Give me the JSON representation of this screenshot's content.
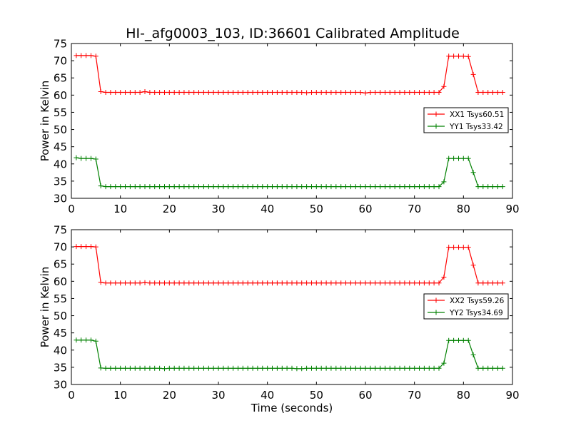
{
  "figure": {
    "title": "HI-_afg0003_103, ID:36601 Calibrated Amplitude"
  },
  "chart_data": [
    {
      "type": "line",
      "xlabel": "",
      "ylabel": "Power in Kelvin",
      "xlim": [
        0,
        90
      ],
      "ylim": [
        30,
        75
      ],
      "xticks": [
        "0",
        "10",
        "20",
        "30",
        "40",
        "50",
        "60",
        "70",
        "80",
        "90"
      ],
      "yticks": [
        "30",
        "35",
        "40",
        "45",
        "50",
        "55",
        "60",
        "65",
        "70",
        "75"
      ],
      "grid": false,
      "legend_position": "center-right",
      "series": [
        {
          "name": "XX1 Tsys60.51",
          "color": "#ff0000",
          "marker": "plus",
          "x": [
            1,
            2,
            3,
            4,
            5,
            6,
            7,
            8,
            9,
            10,
            11,
            12,
            13,
            14,
            15,
            16,
            17,
            18,
            19,
            20,
            21,
            22,
            23,
            24,
            25,
            26,
            27,
            28,
            29,
            30,
            31,
            32,
            33,
            34,
            35,
            36,
            37,
            38,
            39,
            40,
            41,
            42,
            43,
            44,
            45,
            46,
            47,
            48,
            49,
            50,
            51,
            52,
            53,
            54,
            55,
            56,
            57,
            58,
            59,
            60,
            61,
            62,
            63,
            64,
            65,
            66,
            67,
            68,
            69,
            70,
            71,
            72,
            73,
            74,
            75,
            76,
            77,
            78,
            79,
            80,
            81,
            82,
            83,
            84,
            85,
            86,
            87,
            88
          ],
          "y": [
            71.5,
            71.5,
            71.5,
            71.5,
            71.3,
            61.0,
            60.8,
            60.8,
            60.8,
            60.8,
            60.8,
            60.8,
            60.8,
            60.8,
            61.0,
            60.8,
            60.8,
            60.8,
            60.8,
            60.8,
            60.8,
            60.8,
            60.8,
            60.8,
            60.8,
            60.8,
            60.8,
            60.8,
            60.8,
            60.8,
            60.8,
            60.8,
            60.8,
            60.8,
            60.8,
            60.8,
            60.8,
            60.8,
            60.8,
            60.8,
            60.8,
            60.8,
            60.8,
            60.8,
            60.8,
            60.8,
            60.8,
            60.7,
            60.8,
            60.8,
            60.8,
            60.8,
            60.8,
            60.8,
            60.8,
            60.8,
            60.8,
            60.8,
            60.8,
            60.6,
            60.8,
            60.8,
            60.8,
            60.8,
            60.8,
            60.8,
            60.8,
            60.8,
            60.8,
            60.8,
            60.8,
            60.8,
            60.8,
            60.8,
            60.8,
            62.5,
            71.3,
            71.3,
            71.3,
            71.3,
            71.2,
            66.0,
            60.8,
            60.8,
            60.8,
            60.8,
            60.8,
            60.8
          ]
        },
        {
          "name": "YY1 Tsys33.42",
          "color": "#008000",
          "marker": "plus",
          "x": [
            1,
            2,
            3,
            4,
            5,
            6,
            7,
            8,
            9,
            10,
            11,
            12,
            13,
            14,
            15,
            16,
            17,
            18,
            19,
            20,
            21,
            22,
            23,
            24,
            25,
            26,
            27,
            28,
            29,
            30,
            31,
            32,
            33,
            34,
            35,
            36,
            37,
            38,
            39,
            40,
            41,
            42,
            43,
            44,
            45,
            46,
            47,
            48,
            49,
            50,
            51,
            52,
            53,
            54,
            55,
            56,
            57,
            58,
            59,
            60,
            61,
            62,
            63,
            64,
            65,
            66,
            67,
            68,
            69,
            70,
            71,
            72,
            73,
            74,
            75,
            76,
            77,
            78,
            79,
            80,
            81,
            82,
            83,
            84,
            85,
            86,
            87,
            88
          ],
          "y": [
            41.8,
            41.6,
            41.6,
            41.6,
            41.4,
            33.6,
            33.4,
            33.4,
            33.4,
            33.4,
            33.4,
            33.4,
            33.4,
            33.4,
            33.4,
            33.4,
            33.4,
            33.4,
            33.4,
            33.4,
            33.4,
            33.4,
            33.4,
            33.4,
            33.4,
            33.4,
            33.4,
            33.4,
            33.4,
            33.4,
            33.4,
            33.4,
            33.4,
            33.4,
            33.4,
            33.4,
            33.4,
            33.4,
            33.4,
            33.4,
            33.4,
            33.4,
            33.4,
            33.4,
            33.4,
            33.4,
            33.4,
            33.4,
            33.4,
            33.4,
            33.4,
            33.4,
            33.4,
            33.4,
            33.4,
            33.4,
            33.4,
            33.4,
            33.4,
            33.4,
            33.4,
            33.4,
            33.4,
            33.4,
            33.4,
            33.4,
            33.4,
            33.4,
            33.4,
            33.4,
            33.4,
            33.4,
            33.4,
            33.4,
            33.4,
            34.8,
            41.6,
            41.6,
            41.6,
            41.6,
            41.6,
            37.5,
            33.4,
            33.4,
            33.4,
            33.4,
            33.4,
            33.4
          ]
        }
      ]
    },
    {
      "type": "line",
      "xlabel": "Time (seconds)",
      "ylabel": "Power in Kelvin",
      "xlim": [
        0,
        90
      ],
      "ylim": [
        30,
        75
      ],
      "xticks": [
        "0",
        "10",
        "20",
        "30",
        "40",
        "50",
        "60",
        "70",
        "80",
        "90"
      ],
      "yticks": [
        "30",
        "35",
        "40",
        "45",
        "50",
        "55",
        "60",
        "65",
        "70",
        "75"
      ],
      "grid": false,
      "legend_position": "center-right",
      "series": [
        {
          "name": "XX2 Tsys59.26",
          "color": "#ff0000",
          "marker": "plus",
          "x": [
            1,
            2,
            3,
            4,
            5,
            6,
            7,
            8,
            9,
            10,
            11,
            12,
            13,
            14,
            15,
            16,
            17,
            18,
            19,
            20,
            21,
            22,
            23,
            24,
            25,
            26,
            27,
            28,
            29,
            30,
            31,
            32,
            33,
            34,
            35,
            36,
            37,
            38,
            39,
            40,
            41,
            42,
            43,
            44,
            45,
            46,
            47,
            48,
            49,
            50,
            51,
            52,
            53,
            54,
            55,
            56,
            57,
            58,
            59,
            60,
            61,
            62,
            63,
            64,
            65,
            66,
            67,
            68,
            69,
            70,
            71,
            72,
            73,
            74,
            75,
            76,
            77,
            78,
            79,
            80,
            81,
            82,
            83,
            84,
            85,
            86,
            87,
            88
          ],
          "y": [
            70.1,
            70.1,
            70.1,
            70.1,
            70.0,
            59.7,
            59.5,
            59.5,
            59.5,
            59.5,
            59.5,
            59.5,
            59.5,
            59.5,
            59.6,
            59.5,
            59.5,
            59.5,
            59.5,
            59.5,
            59.5,
            59.5,
            59.5,
            59.5,
            59.5,
            59.5,
            59.5,
            59.5,
            59.5,
            59.5,
            59.5,
            59.5,
            59.5,
            59.5,
            59.5,
            59.5,
            59.5,
            59.5,
            59.5,
            59.5,
            59.5,
            59.5,
            59.5,
            59.5,
            59.5,
            59.5,
            59.5,
            59.5,
            59.5,
            59.5,
            59.5,
            59.5,
            59.5,
            59.5,
            59.5,
            59.5,
            59.5,
            59.5,
            59.5,
            59.5,
            59.5,
            59.5,
            59.5,
            59.5,
            59.5,
            59.5,
            59.5,
            59.5,
            59.5,
            59.5,
            59.5,
            59.5,
            59.5,
            59.5,
            59.5,
            61.2,
            69.9,
            69.9,
            69.9,
            69.9,
            69.9,
            64.7,
            59.5,
            59.5,
            59.5,
            59.5,
            59.5,
            59.5
          ]
        },
        {
          "name": "YY2 Tsys34.69",
          "color": "#008000",
          "marker": "plus",
          "x": [
            1,
            2,
            3,
            4,
            5,
            6,
            7,
            8,
            9,
            10,
            11,
            12,
            13,
            14,
            15,
            16,
            17,
            18,
            19,
            20,
            21,
            22,
            23,
            24,
            25,
            26,
            27,
            28,
            29,
            30,
            31,
            32,
            33,
            34,
            35,
            36,
            37,
            38,
            39,
            40,
            41,
            42,
            43,
            44,
            45,
            46,
            47,
            48,
            49,
            50,
            51,
            52,
            53,
            54,
            55,
            56,
            57,
            58,
            59,
            60,
            61,
            62,
            63,
            64,
            65,
            66,
            67,
            68,
            69,
            70,
            71,
            72,
            73,
            74,
            75,
            76,
            77,
            78,
            79,
            80,
            81,
            82,
            83,
            84,
            85,
            86,
            87,
            88
          ],
          "y": [
            42.9,
            42.9,
            42.9,
            42.9,
            42.6,
            34.8,
            34.7,
            34.7,
            34.7,
            34.7,
            34.7,
            34.7,
            34.7,
            34.7,
            34.7,
            34.7,
            34.7,
            34.7,
            34.6,
            34.7,
            34.7,
            34.7,
            34.7,
            34.7,
            34.7,
            34.7,
            34.7,
            34.7,
            34.7,
            34.7,
            34.7,
            34.7,
            34.7,
            34.7,
            34.7,
            34.7,
            34.7,
            34.7,
            34.7,
            34.7,
            34.7,
            34.7,
            34.7,
            34.7,
            34.7,
            34.6,
            34.6,
            34.7,
            34.7,
            34.7,
            34.7,
            34.7,
            34.7,
            34.7,
            34.7,
            34.7,
            34.7,
            34.7,
            34.7,
            34.7,
            34.7,
            34.7,
            34.7,
            34.7,
            34.7,
            34.7,
            34.7,
            34.7,
            34.7,
            34.7,
            34.7,
            34.7,
            34.7,
            34.7,
            34.7,
            36.2,
            42.8,
            42.8,
            42.8,
            42.8,
            42.8,
            38.6,
            34.7,
            34.7,
            34.7,
            34.7,
            34.7,
            34.7
          ]
        }
      ]
    }
  ]
}
